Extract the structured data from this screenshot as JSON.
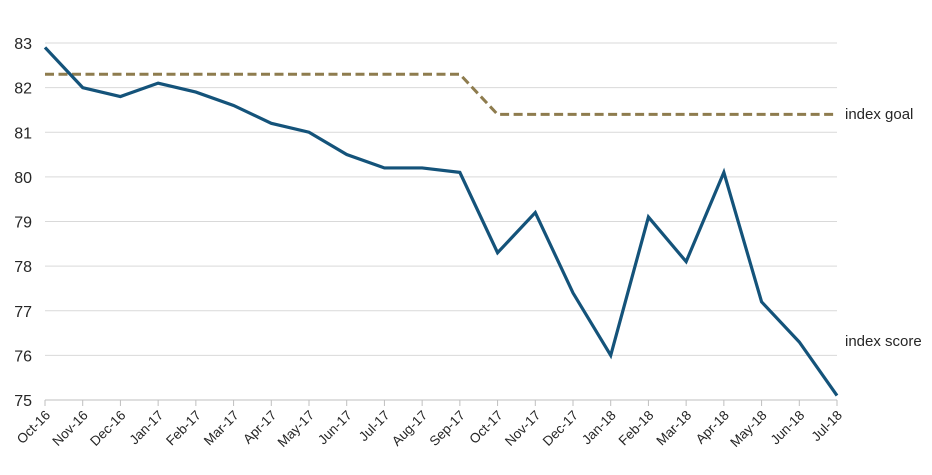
{
  "chart_data": {
    "type": "line",
    "title": "",
    "xlabel": "",
    "ylabel": "",
    "categories": [
      "Oct-16",
      "Nov-16",
      "Dec-16",
      "Jan-17",
      "Feb-17",
      "Mar-17",
      "Apr-17",
      "May-17",
      "Jun-17",
      "Jul-17",
      "Aug-17",
      "Sep-17",
      "Oct-17",
      "Nov-17",
      "Dec-17",
      "Jan-18",
      "Feb-18",
      "Mar-18",
      "Apr-18",
      "May-18",
      "Jun-18",
      "Jul-18"
    ],
    "series": [
      {
        "name": "index score",
        "style": "solid",
        "color": "#14537a",
        "values": [
          82.9,
          82.0,
          81.8,
          82.1,
          81.9,
          81.6,
          81.2,
          81.0,
          80.5,
          80.2,
          80.2,
          80.1,
          78.3,
          79.2,
          77.4,
          76.0,
          79.1,
          78.1,
          80.1,
          77.2,
          76.3,
          75.1
        ]
      },
      {
        "name": "index goal",
        "style": "dashed",
        "color": "#8e7c4e",
        "values": [
          82.3,
          82.3,
          82.3,
          82.3,
          82.3,
          82.3,
          82.3,
          82.3,
          82.3,
          82.3,
          82.3,
          82.3,
          81.4,
          81.4,
          81.4,
          81.4,
          81.4,
          81.4,
          81.4,
          81.4,
          81.4,
          81.4
        ]
      }
    ],
    "ylim": [
      75,
      83
    ],
    "yticks": [
      75,
      76,
      77,
      78,
      79,
      80,
      81,
      82,
      83
    ],
    "grid": true,
    "legend_position": "right-of-line-ends"
  },
  "colors": {
    "score_line": "#14537a",
    "goal_line": "#8e7c4e",
    "gridline": "#d9d9d9",
    "axis": "#bfbfbf",
    "text": "#262626",
    "background": "#ffffff"
  }
}
